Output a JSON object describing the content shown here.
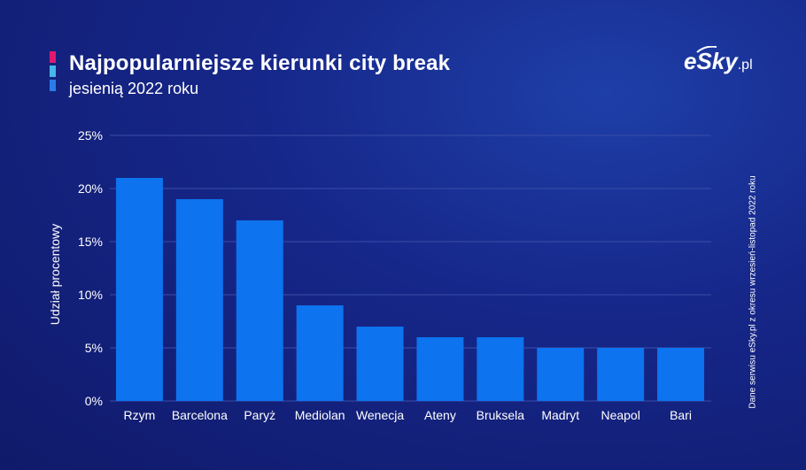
{
  "header": {
    "title": "Najpopularniejsze kierunki city break",
    "subtitle": "jesienią 2022 roku",
    "accent_colors": [
      "#e2186f",
      "#47b6e8",
      "#2a7de8"
    ]
  },
  "brand": {
    "name": "eSky",
    "tld": ".pl"
  },
  "side_note": "Dane serwisu eSky.pl z okresu wrzesień-listopad 2022 roku",
  "colors": {
    "bar": "#0d73ee",
    "grid": "#3a4ea8",
    "text": "#ffffff"
  },
  "chart_data": {
    "type": "bar",
    "title": "Najpopularniejsze kierunki city break",
    "subtitle": "jesienią 2022 roku",
    "xlabel": "",
    "ylabel": "Udział procentowy",
    "categories": [
      "Rzym",
      "Barcelona",
      "Paryż",
      "Mediolan",
      "Wenecja",
      "Ateny",
      "Bruksela",
      "Madryt",
      "Neapol",
      "Bari"
    ],
    "values": [
      21,
      19,
      17,
      9,
      7,
      6,
      6,
      5,
      5,
      5
    ],
    "ylim": [
      0,
      25
    ],
    "yticks": [
      0,
      5,
      10,
      15,
      20,
      25
    ],
    "ytick_labels": [
      "0%",
      "5%",
      "10%",
      "15%",
      "20%",
      "25%"
    ],
    "grid": true,
    "legend": "none"
  }
}
